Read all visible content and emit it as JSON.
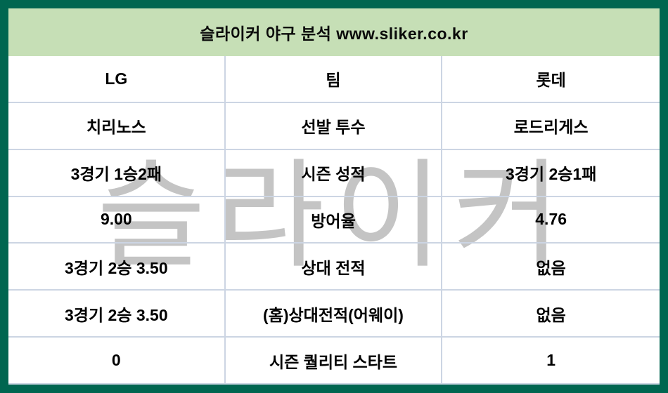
{
  "header": {
    "title": "슬라이커 야구 분석 www.sliker.co.kr"
  },
  "watermark": {
    "text": "슬라이커"
  },
  "table": {
    "columns": [
      "LG",
      "팀",
      "롯데"
    ],
    "rows": [
      {
        "left": "치리노스",
        "label": "선발 투수",
        "right": "로드리게스"
      },
      {
        "left": "3경기 1승2패",
        "label": "시즌 성적",
        "right": "3경기 2승1패"
      },
      {
        "left": "9.00",
        "label": "방어율",
        "right": "4.76"
      },
      {
        "left": "3경기 2승 3.50",
        "label": "상대 전적",
        "right": "없음"
      },
      {
        "left": "3경기 2승 3.50",
        "label": "(홈)상대전적(어웨이)",
        "right": "없음"
      },
      {
        "left": "0",
        "label": "시즌 퀄리티 스타트",
        "right": "1"
      }
    ]
  },
  "colors": {
    "frame_green": "#006650",
    "header_green": "#c6dfb6",
    "gridline": "#ccd5e3",
    "watermark_gray": "#c4c4c4",
    "text": "#000000"
  }
}
